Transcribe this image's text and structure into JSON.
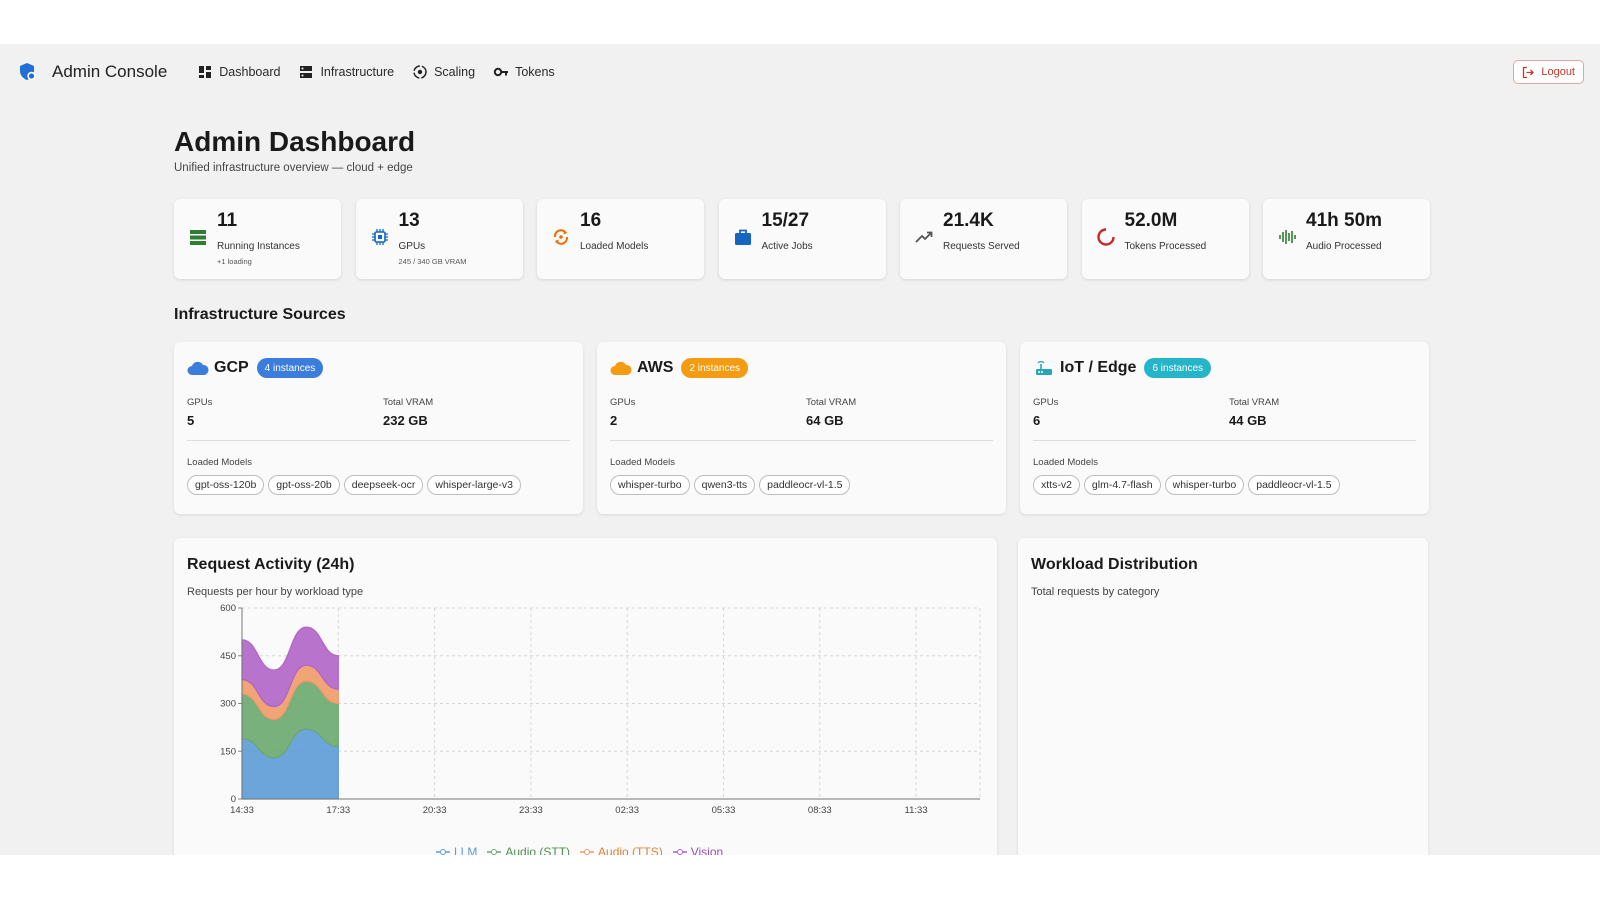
{
  "nav": {
    "title": "Admin Console",
    "links": [
      {
        "label": "Dashboard",
        "icon": "dashboard-icon"
      },
      {
        "label": "Infrastructure",
        "icon": "server-icon"
      },
      {
        "label": "Scaling",
        "icon": "scaling-icon"
      },
      {
        "label": "Tokens",
        "icon": "key-icon"
      }
    ],
    "logout": "Logout"
  },
  "header": {
    "title": "Admin Dashboard",
    "subtitle": "Unified infrastructure overview — cloud + edge"
  },
  "stats": [
    {
      "value": "11",
      "label": "Running Instances",
      "sub": "+1 loading",
      "icon": "server-stack-icon",
      "color": "#2e7d32"
    },
    {
      "value": "13",
      "label": "GPUs",
      "sub": "245 / 340 GB VRAM",
      "icon": "chip-icon",
      "color": "#1565c0"
    },
    {
      "value": "16",
      "label": "Loaded Models",
      "sub": "",
      "icon": "sync-icon",
      "color": "#ef6c00"
    },
    {
      "value": "15/27",
      "label": "Active Jobs",
      "sub": "",
      "icon": "briefcase-icon",
      "color": "#1565c0"
    },
    {
      "value": "21.4K",
      "label": "Requests Served",
      "sub": "",
      "icon": "trending-up-icon",
      "color": "#555555"
    },
    {
      "value": "52.0M",
      "label": "Tokens Processed",
      "sub": "",
      "icon": "spinner-icon",
      "color": "#c62828"
    },
    {
      "value": "41h 50m",
      "label": "Audio Processed",
      "sub": "",
      "icon": "waveform-icon",
      "color": "#2e7d32"
    }
  ],
  "infra": {
    "title": "Infrastructure Sources",
    "sources": [
      {
        "name": "GCP",
        "badge": "4 instances",
        "badge_color": "#3b7ddd",
        "icon": "cloud-icon",
        "icon_color": "#3b7ddd",
        "gpus_label": "GPUs",
        "gpus": "5",
        "vram_label": "Total VRAM",
        "vram": "232 GB",
        "models_label": "Loaded Models",
        "models": [
          "gpt-oss-120b",
          "gpt-oss-20b",
          "deepseek-ocr",
          "whisper-large-v3"
        ]
      },
      {
        "name": "AWS",
        "badge": "2 instances",
        "badge_color": "#f39c12",
        "icon": "cloud-icon",
        "icon_color": "#f39c12",
        "gpus_label": "GPUs",
        "gpus": "2",
        "vram_label": "Total VRAM",
        "vram": "64 GB",
        "models_label": "Loaded Models",
        "models": [
          "whisper-turbo",
          "qwen3-tts",
          "paddleocr-vl-1.5"
        ]
      },
      {
        "name": "IoT / Edge",
        "badge": "6 instances",
        "badge_color": "#26b5c8",
        "icon": "router-icon",
        "icon_color": "#26a5b8",
        "gpus_label": "GPUs",
        "gpus": "6",
        "vram_label": "Total VRAM",
        "vram": "44 GB",
        "models_label": "Loaded Models",
        "models": [
          "xtts-v2",
          "glm-4.7-flash",
          "whisper-turbo",
          "paddleocr-vl-1.5"
        ]
      }
    ]
  },
  "activity": {
    "title": "Request Activity (24h)",
    "subtitle": "Requests per hour by workload type"
  },
  "workload": {
    "title": "Workload Distribution",
    "subtitle": "Total requests by category"
  },
  "chart_data": {
    "type": "area",
    "stacked": true,
    "ylim": [
      0,
      600
    ],
    "yticks": [
      "0",
      "150",
      "300",
      "450",
      "600"
    ],
    "xticks": [
      "14:33",
      "17:33",
      "20:33",
      "23:33",
      "02:33",
      "05:33",
      "08:33",
      "11:33"
    ],
    "x": [
      "14:33",
      "15:33",
      "16:33",
      "17:33"
    ],
    "grid": true,
    "legend_position": "bottom",
    "series": [
      {
        "name": "LLM",
        "color": "#5b9bd5",
        "values": [
          190,
          130,
          220,
          165
        ]
      },
      {
        "name": "Audio (STT)",
        "color": "#6aa86f",
        "values": [
          140,
          120,
          150,
          135
        ]
      },
      {
        "name": "Audio (TTS)",
        "color": "#ef9a67",
        "values": [
          45,
          40,
          50,
          45
        ]
      },
      {
        "name": "Vision",
        "color": "#b064c8",
        "values": [
          125,
          115,
          120,
          105
        ]
      }
    ]
  }
}
